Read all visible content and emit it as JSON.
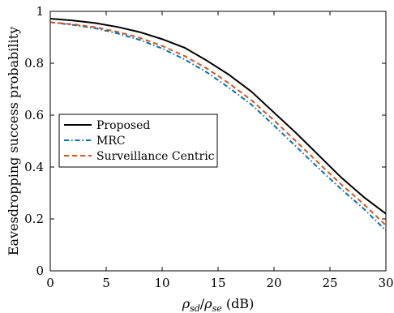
{
  "chart_data": {
    "type": "line",
    "xlabel": "ρsd/ρse (dB)",
    "ylabel": "Eavesdropping success probability",
    "xlim": [
      0,
      30
    ],
    "ylim": [
      0,
      1
    ],
    "xticks": [
      0,
      5,
      10,
      15,
      20,
      25,
      30
    ],
    "yticks": [
      0,
      0.2,
      0.4,
      0.6,
      0.8,
      1
    ],
    "xtick_labels": [
      "0",
      "5",
      "10",
      "15",
      "20",
      "25",
      "30"
    ],
    "ytick_labels": [
      "0",
      "0.2",
      "0.4",
      "0.6",
      "0.8",
      "1"
    ],
    "grid": false,
    "legend_position": "middle-left",
    "x": [
      0,
      2,
      4,
      6,
      8,
      10,
      12,
      14,
      16,
      18,
      20,
      22,
      24,
      26,
      28,
      30
    ],
    "series": [
      {
        "name": "Proposed",
        "color": "#000000",
        "style": "solid",
        "values": [
          0.972,
          0.965,
          0.955,
          0.94,
          0.92,
          0.893,
          0.86,
          0.81,
          0.755,
          0.69,
          0.61,
          0.53,
          0.445,
          0.36,
          0.285,
          0.22
        ]
      },
      {
        "name": "MRC",
        "color": "#0072BD",
        "style": "dashdot",
        "values": [
          0.958,
          0.948,
          0.935,
          0.915,
          0.89,
          0.857,
          0.815,
          0.765,
          0.705,
          0.64,
          0.56,
          0.478,
          0.395,
          0.315,
          0.24,
          0.155
        ]
      },
      {
        "name": "Surveillance Centric",
        "color": "#D95319",
        "style": "dashed",
        "values": [
          0.958,
          0.95,
          0.939,
          0.921,
          0.898,
          0.867,
          0.828,
          0.78,
          0.722,
          0.657,
          0.58,
          0.498,
          0.415,
          0.333,
          0.258,
          0.175
        ]
      }
    ]
  }
}
